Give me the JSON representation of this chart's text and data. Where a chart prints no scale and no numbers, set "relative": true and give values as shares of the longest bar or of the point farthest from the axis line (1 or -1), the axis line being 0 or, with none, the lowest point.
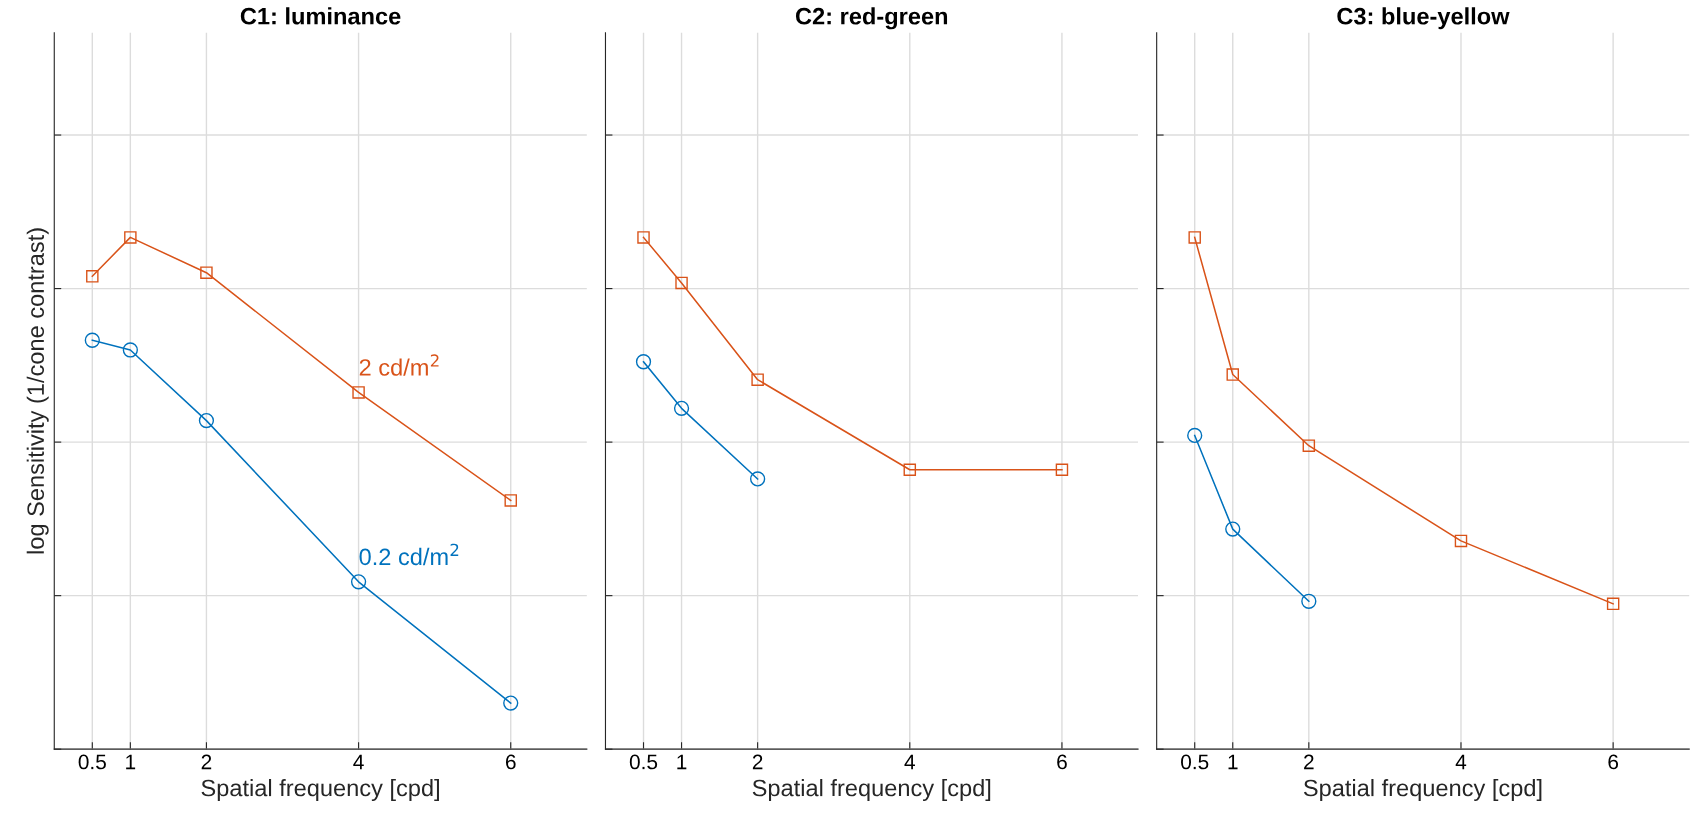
{
  "chart_data": [
    {
      "type": "line",
      "title": "C1: luminance",
      "xlabel": "Spatial frequency [cpd]",
      "ylabel": "log Sensitivity (1/cone contrast)",
      "relative": true,
      "xlim": [
        0,
        7
      ],
      "xticks": [
        0.5,
        1,
        2,
        4,
        6
      ],
      "tick_labels": "x",
      "grid": true,
      "series": [
        {
          "color": "#0072bd",
          "marker": "circle",
          "x": [
            0.5,
            1,
            2,
            4,
            6
          ],
          "values": [
            0.799,
            0.78,
            0.642,
            0.327,
            0.09
          ]
        },
        {
          "color": "#d95319",
          "marker": "square",
          "x": [
            0.5,
            1,
            2,
            4,
            6
          ],
          "values": [
            0.924,
            1.0,
            0.931,
            0.697,
            0.486
          ]
        }
      ],
      "annotations": [
        {
          "text": "2 cd/m$^{2}$",
          "x": 4,
          "y": 0.697
        },
        {
          "text": "0.2 cd/m$^{2}$",
          "x": 4,
          "y": 0.327
        }
      ]
    },
    {
      "type": "line",
      "title": "C2: red-green",
      "xlabel": "Spatial frequency [cpd]",
      "relative": true,
      "xlim": [
        0,
        7
      ],
      "xticks": [
        0.5,
        1,
        2,
        4,
        6
      ],
      "tick_labels": "x",
      "grid": true,
      "series": [
        {
          "color": "#0072bd",
          "marker": "circle",
          "x": [
            0.5,
            1,
            2
          ],
          "values": [
            0.757,
            0.666,
            0.528
          ]
        },
        {
          "color": "#d95319",
          "marker": "square",
          "x": [
            0.5,
            1,
            2,
            4,
            6
          ],
          "values": [
            1.0,
            0.911,
            0.722,
            0.546,
            0.546
          ]
        }
      ]
    },
    {
      "type": "line",
      "title": "C3: blue-yellow",
      "xlabel": "Spatial frequency [cpd]",
      "relative": true,
      "xlim": [
        0,
        7
      ],
      "xticks": [
        0.5,
        1,
        2,
        4,
        6
      ],
      "tick_labels": "x",
      "grid": true,
      "series": [
        {
          "color": "#0072bd",
          "marker": "circle",
          "x": [
            0.5,
            1,
            2
          ],
          "values": [
            0.613,
            0.43,
            0.289
          ]
        },
        {
          "color": "#d95319",
          "marker": "square",
          "x": [
            0.5,
            1,
            2,
            4,
            6
          ],
          "values": [
            1.0,
            0.732,
            0.593,
            0.407,
            0.284
          ]
        }
      ]
    }
  ]
}
